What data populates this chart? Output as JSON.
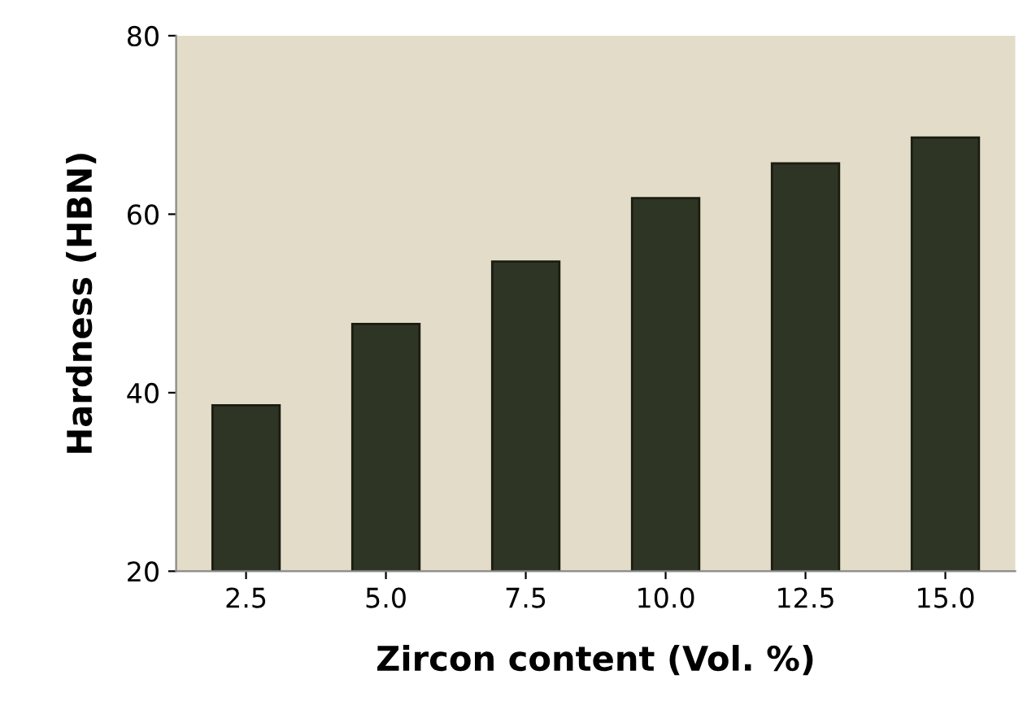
{
  "chart_data": {
    "type": "bar",
    "xlabel": "Zircon content (Vol. %)",
    "ylabel": "Hardness (HBN)",
    "categories": [
      "2.5",
      "5.0",
      "7.5",
      "10.0",
      "12.5",
      "15.0"
    ],
    "values": [
      38.6,
      47.7,
      54.7,
      61.8,
      65.7,
      68.6
    ],
    "color": "#2f3524",
    "ylim": [
      20,
      80
    ],
    "yticks": [
      20,
      40,
      60,
      80
    ],
    "grid": false
  }
}
